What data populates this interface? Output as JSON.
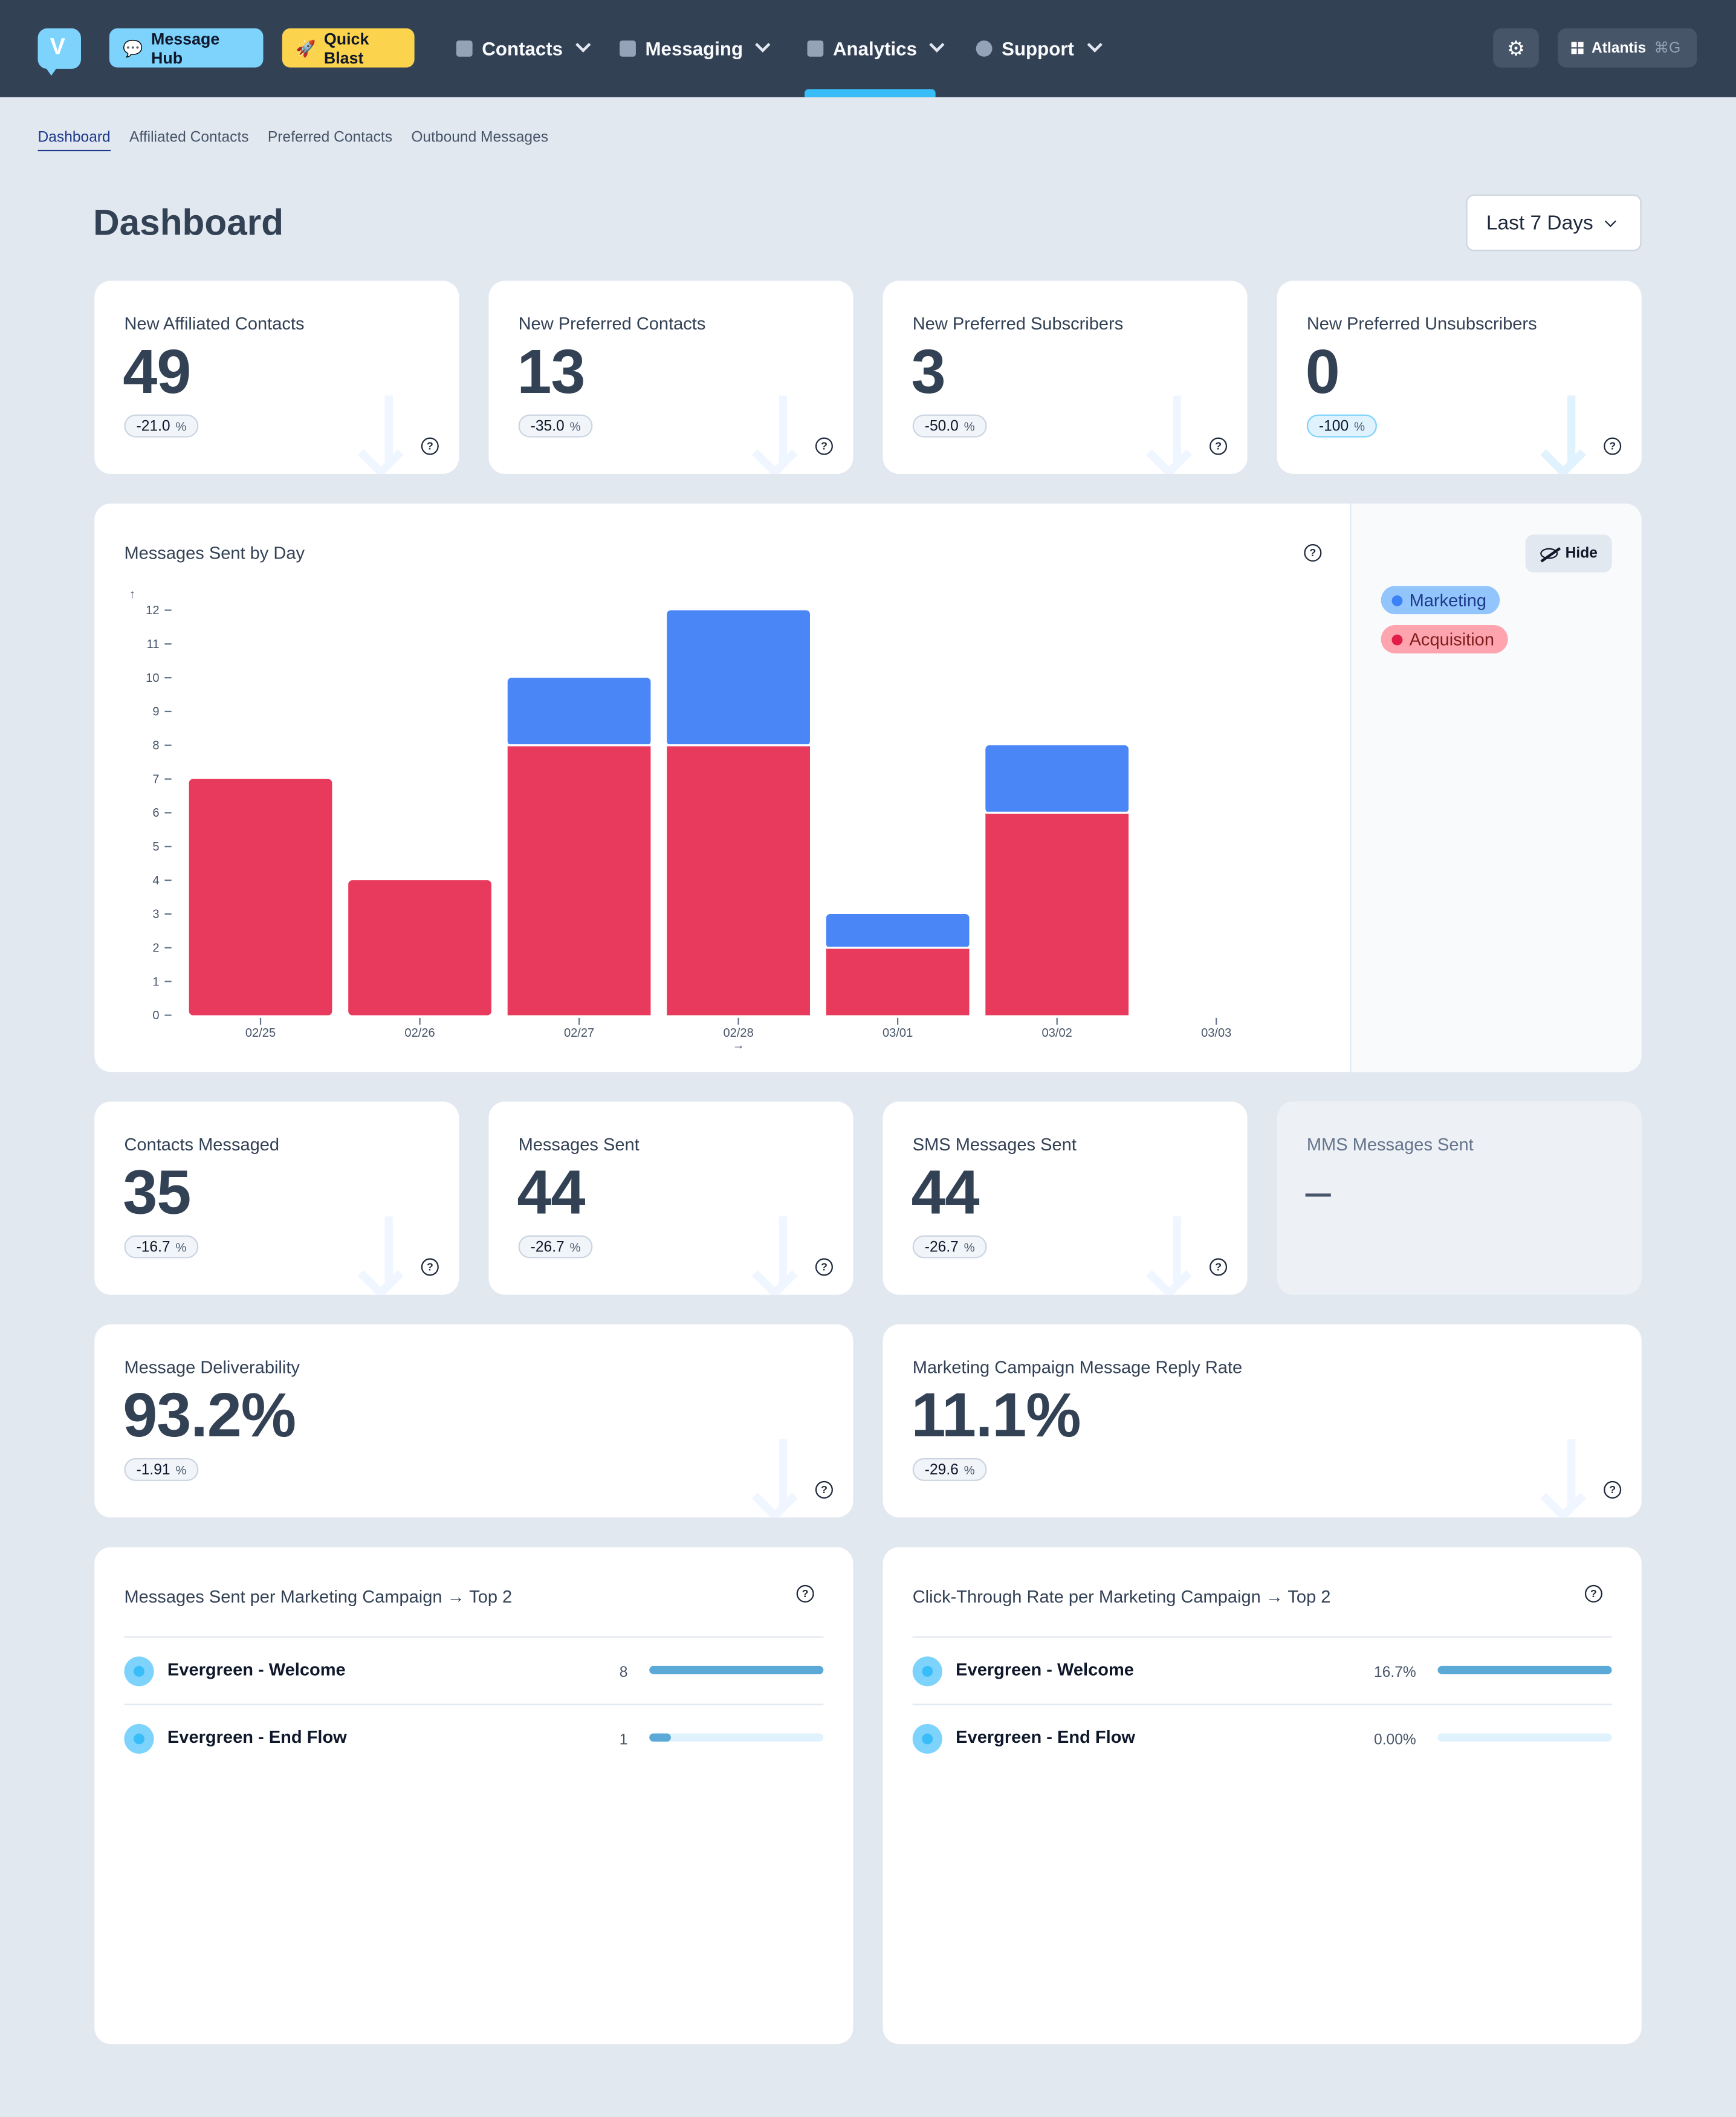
{
  "nav": {
    "logo": "V",
    "message_hub": "Message Hub",
    "quick_blast": "Quick Blast",
    "items": [
      {
        "label": "Contacts",
        "icon": "contact-book-icon"
      },
      {
        "label": "Messaging",
        "icon": "chat-bubbles-icon"
      },
      {
        "label": "Analytics",
        "icon": "bar-chart-icon",
        "active": true
      },
      {
        "label": "Support",
        "icon": "info-icon"
      }
    ],
    "org_name": "Atlantis",
    "org_shortcut": "⌘G"
  },
  "subnav": [
    "Dashboard",
    "Affiliated Contacts",
    "Preferred Contacts",
    "Outbound Messages"
  ],
  "page_title": "Dashboard",
  "date_range": "Last 7 Days",
  "stats_top": [
    {
      "label": "New Affiliated Contacts",
      "value": "49",
      "delta": "-21.0"
    },
    {
      "label": "New Preferred Contacts",
      "value": "13",
      "delta": "-35.0"
    },
    {
      "label": "New Preferred Subscribers",
      "value": "3",
      "delta": "-50.0"
    },
    {
      "label": "New Preferred Unsubscribers",
      "value": "0",
      "delta": "-100"
    }
  ],
  "chart": {
    "title": "Messages Sent by Day",
    "hide_label": "Hide",
    "legend": [
      "Marketing",
      "Acquisition"
    ]
  },
  "chart_data": {
    "type": "bar",
    "stacked": true,
    "categories": [
      "02/25",
      "02/26",
      "02/27",
      "02/28",
      "03/01",
      "03/02",
      "03/03"
    ],
    "series": [
      {
        "name": "Acquisition",
        "values": [
          7,
          4,
          8,
          8,
          2,
          6,
          0
        ],
        "color": "#e83a5c"
      },
      {
        "name": "Marketing",
        "values": [
          0,
          0,
          2,
          4,
          1,
          2,
          0
        ],
        "color": "#4a86f5"
      }
    ],
    "ylim": [
      0,
      12
    ],
    "yticks": [
      0,
      1,
      2,
      3,
      4,
      5,
      6,
      7,
      8,
      9,
      10,
      11,
      12
    ],
    "legend_position": "right"
  },
  "stats_mid": [
    {
      "label": "Contacts Messaged",
      "value": "35",
      "delta": "-16.7"
    },
    {
      "label": "Messages Sent",
      "value": "44",
      "delta": "-26.7"
    },
    {
      "label": "SMS Messages Sent",
      "value": "44",
      "delta": "-26.7"
    },
    {
      "label": "MMS Messages Sent",
      "value": "–"
    }
  ],
  "stats_rate": [
    {
      "label": "Message Deliverability",
      "value": "93.2%",
      "delta": "-1.91"
    },
    {
      "label": "Marketing Campaign Message Reply Rate",
      "value": "11.1%",
      "delta": "-29.6"
    }
  ],
  "campaigns_sent": {
    "title": "Messages Sent per Marketing Campaign → Top 2",
    "rows": [
      {
        "name": "Evergreen - Welcome",
        "value": "8",
        "fraction": 1.0
      },
      {
        "name": "Evergreen - End Flow",
        "value": "1",
        "fraction": 0.125
      }
    ]
  },
  "campaigns_ctr": {
    "title": "Click-Through Rate per Marketing Campaign → Top 2",
    "rows": [
      {
        "name": "Evergreen - Welcome",
        "value": "16.7%",
        "fraction": 1.0
      },
      {
        "name": "Evergreen - End Flow",
        "value": "0.00%",
        "fraction": 0.0
      }
    ]
  },
  "colors": {
    "nav_bg": "#334155",
    "accent": "#38bdf8",
    "acquisition": "#e83a5c",
    "marketing": "#4a86f5"
  }
}
